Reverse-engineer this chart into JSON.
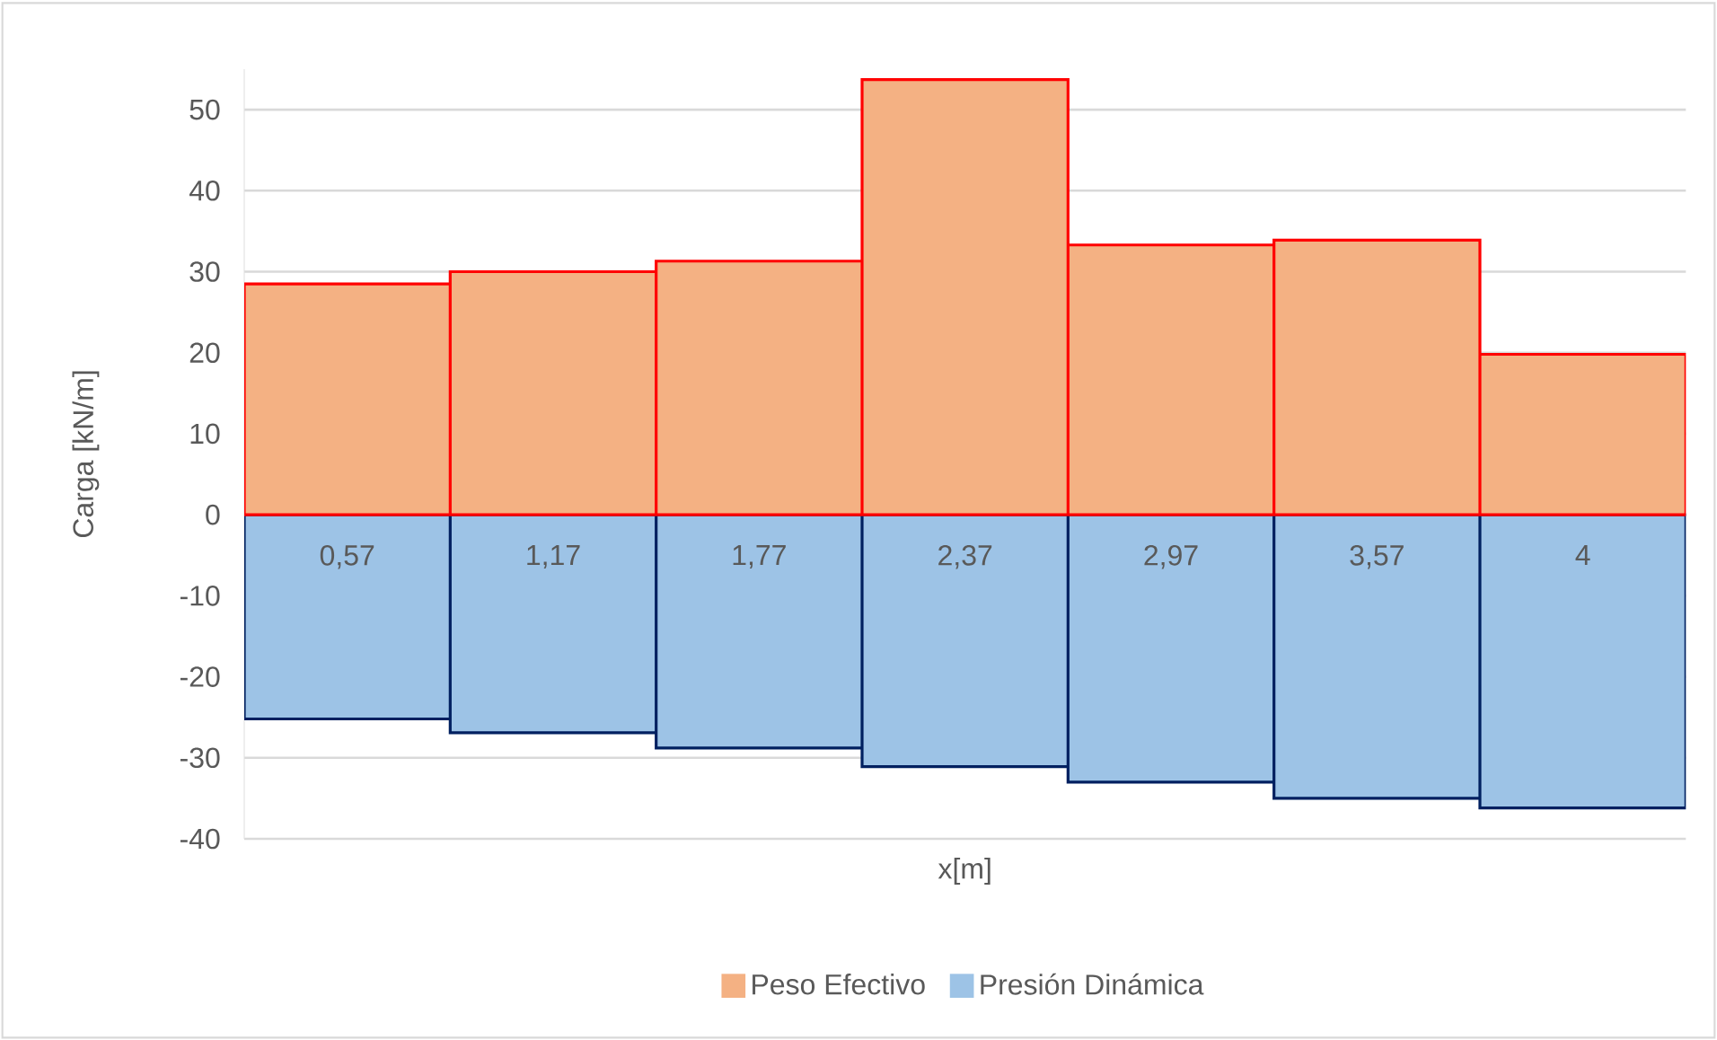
{
  "chart_data": {
    "type": "bar",
    "xlabel": "x[m]",
    "ylabel": "Carga [kN/m]",
    "categories": [
      "0,57",
      "1,17",
      "1,77",
      "2,37",
      "2,97",
      "3,57",
      "4"
    ],
    "series": [
      {
        "name": "Peso Efectivo",
        "color": "#f4b183",
        "values": [
          28.5,
          30.0,
          31.3,
          53.7,
          33.3,
          33.9,
          19.8
        ]
      },
      {
        "name": "Presión Dinámica",
        "color": "#9dc3e6",
        "values": [
          -25.2,
          -26.9,
          -28.8,
          -31.1,
          -33.0,
          -35.0,
          -36.2
        ]
      }
    ],
    "ylim": [
      -40,
      55
    ],
    "yticks": [
      -40,
      -30,
      -20,
      -10,
      0,
      10,
      20,
      30,
      40,
      50
    ],
    "stacked": true,
    "grid": "y",
    "legend": "bottom"
  }
}
